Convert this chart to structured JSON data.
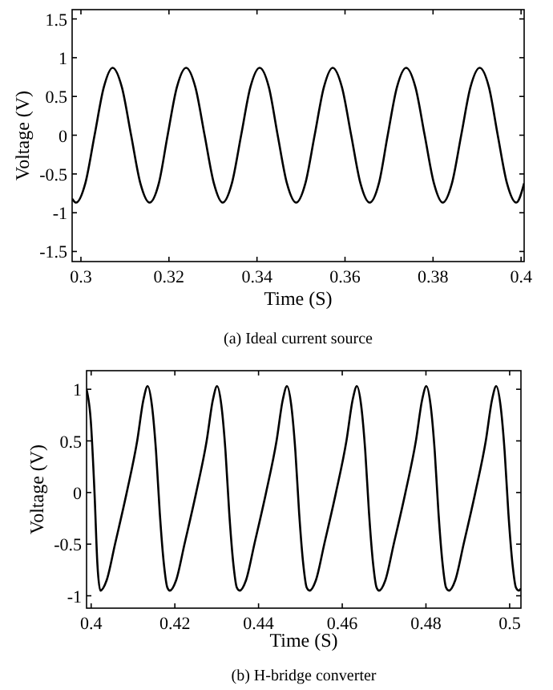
{
  "chart_data": [
    {
      "type": "line",
      "xlabel": "Time (S)",
      "ylabel": "Voltage (V)",
      "annotations": [
        "(a) Ideal current source"
      ],
      "xlim": [
        0.298,
        0.4007
      ],
      "ylim": [
        -1.63,
        1.62
      ],
      "xticks": [
        0.3,
        0.32,
        0.34,
        0.36,
        0.38,
        0.4
      ],
      "yticks": [
        -1.5,
        -1,
        -0.5,
        0,
        0.5,
        1,
        1.5
      ],
      "grid": false,
      "line_style": "solid",
      "x": [
        0.298,
        0.2989,
        0.301,
        0.3031,
        0.3052,
        0.3072,
        0.3093,
        0.3114,
        0.3135,
        0.3156,
        0.3177,
        0.3197,
        0.3218,
        0.3239,
        0.326,
        0.3281,
        0.3302,
        0.3322,
        0.3343,
        0.3364,
        0.3385,
        0.3406,
        0.3427,
        0.3447,
        0.3468,
        0.3489,
        0.351,
        0.3531,
        0.3552,
        0.3572,
        0.3593,
        0.3614,
        0.3635,
        0.3656,
        0.3677,
        0.3697,
        0.3718,
        0.3739,
        0.376,
        0.3781,
        0.3802,
        0.3822,
        0.3843,
        0.3864,
        0.3885,
        0.3906,
        0.3927,
        0.3947,
        0.3968,
        0.3989,
        0.4007
      ],
      "series": [
        {
          "color": "#000000",
          "values": [
            -0.82,
            -0.87,
            -0.62,
            0,
            0.62,
            0.87,
            0.62,
            0,
            -0.62,
            -0.87,
            -0.62,
            0,
            0.62,
            0.87,
            0.62,
            0,
            -0.62,
            -0.87,
            -0.62,
            0,
            0.62,
            0.87,
            0.62,
            0,
            -0.62,
            -0.87,
            -0.62,
            0,
            0.62,
            0.87,
            0.62,
            0,
            -0.62,
            -0.87,
            -0.62,
            0,
            0.62,
            0.87,
            0.62,
            0,
            -0.62,
            -0.87,
            -0.62,
            0,
            0.62,
            0.87,
            0.62,
            0,
            -0.62,
            -0.87,
            -0.62
          ]
        }
      ]
    },
    {
      "type": "line",
      "xlabel": "Time (S)",
      "ylabel": "Voltage (V)",
      "annotations": [
        "(b) H-bridge converter"
      ],
      "xlim": [
        0.3989,
        0.5027
      ],
      "ylim": [
        -1.12,
        1.18
      ],
      "xticks": [
        0.4,
        0.42,
        0.44,
        0.46,
        0.48,
        0.5
      ],
      "yticks": [
        -1,
        -0.5,
        0,
        0.5,
        1
      ],
      "grid": false,
      "line_style": "solid",
      "x": [
        0.3989,
        0.3999,
        0.4008,
        0.4015,
        0.4022,
        0.4037,
        0.4057,
        0.4085,
        0.411,
        0.4125,
        0.4135,
        0.4145,
        0.4155,
        0.4164,
        0.4174,
        0.4182,
        0.4188,
        0.4203,
        0.4223,
        0.4251,
        0.4276,
        0.4291,
        0.4301,
        0.4311,
        0.4321,
        0.433,
        0.434,
        0.4348,
        0.4355,
        0.437,
        0.439,
        0.4418,
        0.4443,
        0.4458,
        0.4468,
        0.4478,
        0.4488,
        0.4497,
        0.4507,
        0.4515,
        0.4522,
        0.4537,
        0.4557,
        0.4585,
        0.461,
        0.4625,
        0.4635,
        0.4645,
        0.4655,
        0.4664,
        0.4674,
        0.4682,
        0.4688,
        0.4703,
        0.4723,
        0.4751,
        0.4776,
        0.4791,
        0.4801,
        0.4811,
        0.4821,
        0.483,
        0.484,
        0.4848,
        0.4855,
        0.487,
        0.489,
        0.4918,
        0.4943,
        0.4958,
        0.4968,
        0.4978,
        0.4988,
        0.4997,
        0.5007,
        0.5015,
        0.5022,
        0.5027
      ],
      "series": [
        {
          "color": "#000000",
          "values": [
            1.0,
            0.7,
            0,
            -0.7,
            -0.95,
            -0.85,
            -0.5,
            0,
            0.5,
            0.9,
            1.03,
            0.85,
            0.4,
            -0.2,
            -0.7,
            -0.92,
            -0.95,
            -0.85,
            -0.5,
            0,
            0.5,
            0.9,
            1.03,
            0.85,
            0.4,
            -0.2,
            -0.7,
            -0.92,
            -0.95,
            -0.85,
            -0.5,
            0,
            0.5,
            0.9,
            1.03,
            0.85,
            0.4,
            -0.2,
            -0.7,
            -0.92,
            -0.95,
            -0.85,
            -0.5,
            0,
            0.5,
            0.9,
            1.03,
            0.85,
            0.4,
            -0.2,
            -0.7,
            -0.92,
            -0.95,
            -0.85,
            -0.5,
            0,
            0.5,
            0.9,
            1.03,
            0.85,
            0.4,
            -0.2,
            -0.7,
            -0.92,
            -0.95,
            -0.85,
            -0.5,
            0,
            0.5,
            0.9,
            1.03,
            0.85,
            0.4,
            -0.2,
            -0.7,
            -0.92,
            -0.95,
            -0.93
          ]
        }
      ]
    }
  ]
}
